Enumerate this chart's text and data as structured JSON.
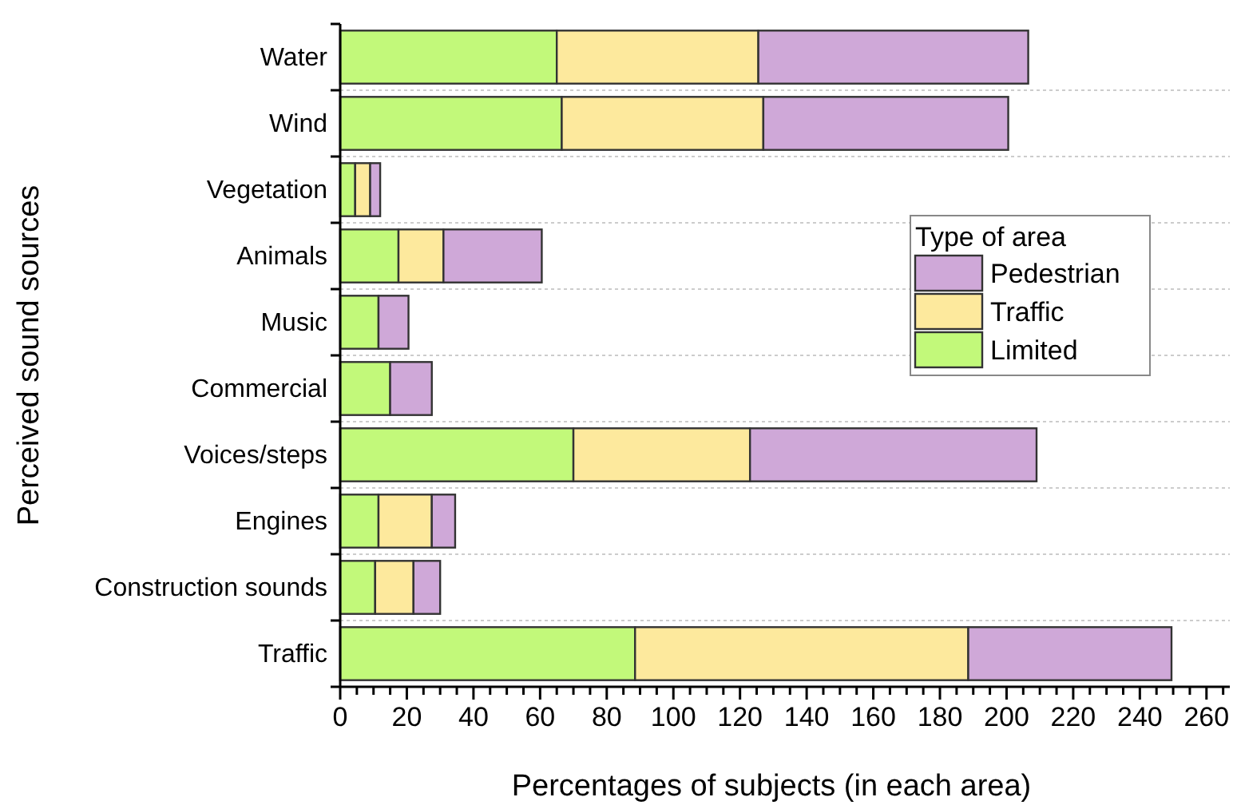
{
  "chart_data": {
    "type": "bar",
    "orientation": "horizontal",
    "stacked": true,
    "xlabel": "Percentages of subjects (in each area)",
    "ylabel": "Perceived sound sources",
    "legend_title": "Type of area",
    "categories": [
      "Water",
      "Wind",
      "Vegetation",
      "Animals",
      "Music",
      "Commercial",
      "Voices/steps",
      "Engines",
      "Construction sounds",
      "Traffic"
    ],
    "series": [
      {
        "name": "Limited",
        "color": "#c2f97a",
        "values": [
          65,
          66.5,
          4.5,
          17.5,
          11.5,
          15,
          70,
          11.5,
          10.5,
          88.5
        ]
      },
      {
        "name": "Traffic",
        "color": "#fde99d",
        "values": [
          60.5,
          60.5,
          4.5,
          13.5,
          0,
          0,
          53,
          16,
          11.5,
          100
        ]
      },
      {
        "name": "Pedestrian",
        "color": "#cfa8d8",
        "values": [
          81,
          73.5,
          3,
          29.5,
          9,
          12.5,
          86,
          7,
          8,
          61
        ]
      }
    ],
    "xlim": [
      0,
      267
    ],
    "xticks": [
      0,
      {
        "value": 5,
        "label": null
      },
      {
        "value": 10,
        "label": null
      },
      {
        "value": 15,
        "label": null
      },
      20,
      {
        "value": 25,
        "label": null
      },
      {
        "value": 30,
        "label": null
      },
      {
        "value": 35,
        "label": null
      },
      40,
      {
        "value": 45,
        "label": null
      },
      {
        "value": 50,
        "label": null
      },
      {
        "value": 55,
        "label": null
      },
      60,
      {
        "value": 65,
        "label": null
      },
      {
        "value": 70,
        "label": null
      },
      {
        "value": 75,
        "label": null
      },
      80,
      {
        "value": 85,
        "label": null
      },
      {
        "value": 90,
        "label": null
      },
      {
        "value": 95,
        "label": null
      },
      100,
      {
        "value": 105,
        "label": null
      },
      {
        "value": 110,
        "label": null
      },
      {
        "value": 115,
        "label": null
      },
      120,
      {
        "value": 125,
        "label": null
      },
      {
        "value": 130,
        "label": null
      },
      {
        "value": 135,
        "label": null
      },
      140,
      {
        "value": 145,
        "label": null
      },
      {
        "value": 150,
        "label": null
      },
      {
        "value": 155,
        "label": null
      },
      160,
      {
        "value": 165,
        "label": null
      },
      {
        "value": 170,
        "label": null
      },
      {
        "value": 175,
        "label": null
      },
      180,
      {
        "value": 185,
        "label": null
      },
      {
        "value": 190,
        "label": null
      },
      {
        "value": 195,
        "label": null
      },
      200,
      {
        "value": 205,
        "label": null
      },
      {
        "value": 210,
        "label": null
      },
      {
        "value": 215,
        "label": null
      },
      220,
      {
        "value": 225,
        "label": null
      },
      {
        "value": 230,
        "label": null
      },
      {
        "value": 235,
        "label": null
      },
      240,
      {
        "value": 245,
        "label": null
      },
      {
        "value": 250,
        "label": null
      },
      {
        "value": 255,
        "label": null
      },
      260,
      {
        "value": 265,
        "label": null
      }
    ],
    "grid": "y",
    "legend": "right"
  }
}
